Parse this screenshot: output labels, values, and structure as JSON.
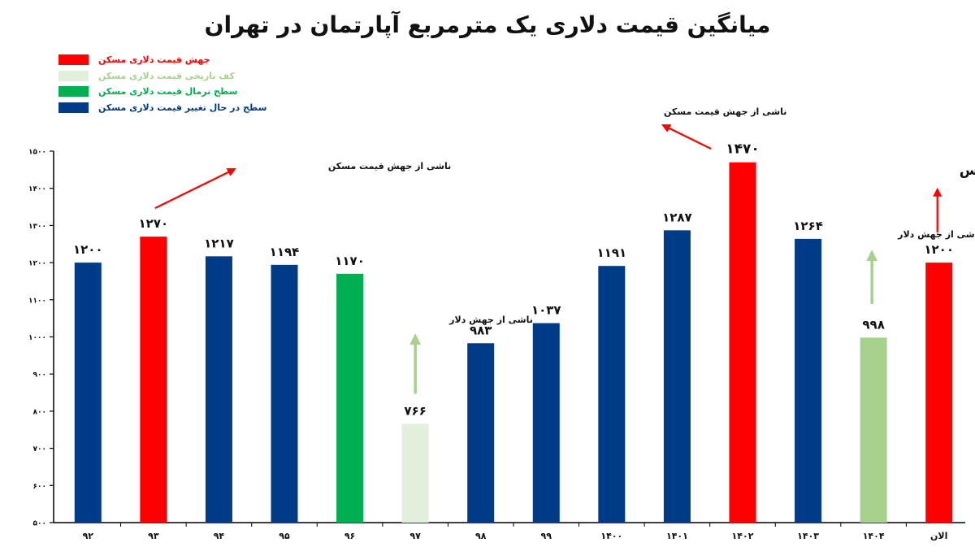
{
  "chart_data": {
    "type": "bar",
    "title": "میانگین قیمت دلاری یک مترمربع آپارتمان در تهران",
    "categories": [
      "۹۲",
      "۹۳",
      "۹۴",
      "۹۵",
      "۹۶",
      "۹۷",
      "۹۸",
      "۹۹",
      "۱۴۰۰",
      "۱۴۰۱",
      "۱۴۰۲",
      "۱۴۰۳",
      "۱۴۰۴",
      "الان"
    ],
    "values": [
      1200,
      1270,
      1217,
      1194,
      1170,
      766,
      983,
      1037,
      1191,
      1287,
      1470,
      1264,
      998,
      1200
    ],
    "value_labels": [
      "۱۲۰۰",
      "۱۲۷۰",
      "۱۲۱۷",
      "۱۱۹۴",
      "۱۱۷۰",
      "۷۶۶",
      "۹۸۳",
      "۱۰۳۷",
      "۱۱۹۱",
      "۱۲۸۷",
      "۱۴۷۰",
      "۱۲۶۴",
      "۹۹۸",
      "۱۲۰۰"
    ],
    "bar_classes": [
      "change",
      "surge",
      "change",
      "change",
      "normal",
      "floor",
      "change",
      "change",
      "change",
      "change",
      "surge",
      "change",
      "floor2",
      "surge"
    ],
    "ylim": [
      500,
      1500
    ],
    "yticks": [
      500,
      600,
      700,
      800,
      900,
      1000,
      1100,
      1200,
      1300,
      1400,
      1500
    ],
    "ytick_labels": [
      "۵۰۰",
      "۶۰۰",
      "۷۰۰",
      "۸۰۰",
      "۹۰۰",
      "۱۰۰۰",
      "۱۱۰۰",
      "۱۲۰۰",
      "۱۳۰۰",
      "۱۴۰۰",
      "۱۵۰۰"
    ],
    "grid": false,
    "legend_position": "top-left",
    "legend": [
      {
        "label": "جهش قیمت دلاری مسکن",
        "color": "#ff0000",
        "text_color": "#ff0000"
      },
      {
        "label": "کف تاریخی قیمت دلاری مسکن",
        "color": "#e2efda",
        "text_color": "#a9d18e"
      },
      {
        "label": "سطح نرمال قیمت دلاری مسکن",
        "color": "#00b050",
        "text_color": "#00b050"
      },
      {
        "label": "سطح در حال تغییر قیمت دلاری مسکن",
        "color": "#003b87",
        "text_color": "#003b87"
      }
    ],
    "colors": {
      "change": "#003b87",
      "surge": "#ff0000",
      "normal": "#00b050",
      "floor": "#e2efda",
      "floor2": "#a9d18e"
    },
    "annotations": [
      {
        "text": "ناشی از جهش قیمت مسکن",
        "near_category": "۹۳"
      },
      {
        "text": "ناشی از جهش دلار",
        "near_category": "۹۷"
      },
      {
        "text": "ناشی از جهش قیمت مسکن",
        "near_category": "۱۴۰۲"
      },
      {
        "text": "ناشی از جهش دلار",
        "near_category": "۱۴۰۴"
      },
      {
        "text": "آتش‌بس",
        "near_category": "الان"
      }
    ]
  }
}
